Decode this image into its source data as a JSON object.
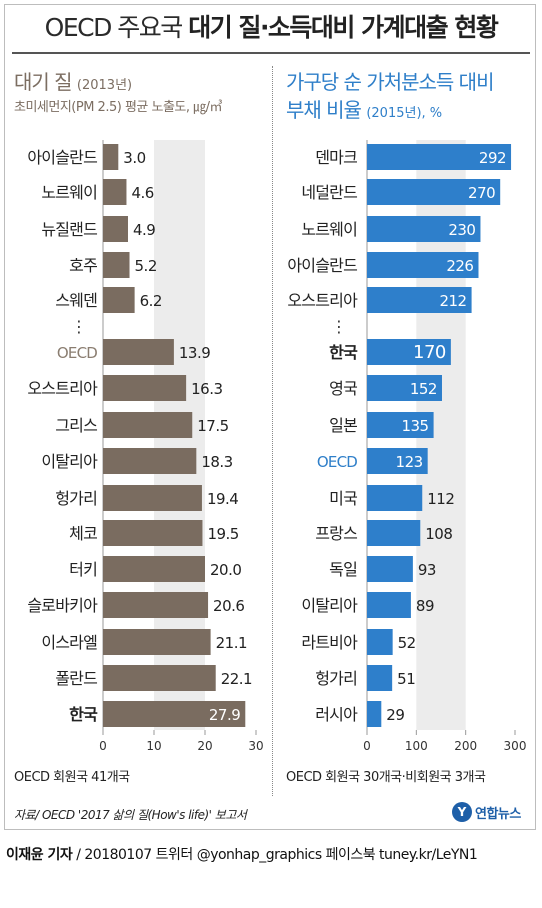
{
  "header": {
    "title_light": "OECD 주요국",
    "title_bold": "대기 질·소득대비 가계대출 현황"
  },
  "colors": {
    "left_bar": "#7a6c60",
    "right_bar": "#2e7fcb",
    "left_header": "#7c6e62",
    "right_header": "#2f7fc9",
    "oecd_label_left": "#8a7d70",
    "oecd_label_right": "#2f7fc9"
  },
  "left_panel": {
    "title": "대기 질",
    "title_year": "(2013년)",
    "subtitle": "초미세먼지(PM 2.5) 평균 노출도, ㎍/㎥",
    "footer": "OECD 회원국 41개국"
  },
  "right_panel": {
    "title_line1": "가구당 순 가처분소득 대비",
    "title_line2": "부채 비율",
    "title_note": "(2015년), %",
    "footer": "OECD 회원국 30개국·비회원국 3개국"
  },
  "ellipsis": "⋮",
  "chart_data": [
    {
      "type": "bar",
      "orientation": "horizontal",
      "title": "대기 질 (2013년)",
      "subtitle": "초미세먼지(PM 2.5) 평균 노출도, ㎍/㎥",
      "categories": [
        "아이슬란드",
        "노르웨이",
        "뉴질랜드",
        "호주",
        "스웨덴",
        "OECD",
        "오스트리아",
        "그리스",
        "이탈리아",
        "헝가리",
        "체코",
        "터키",
        "슬로바키아",
        "이스라엘",
        "폴란드",
        "한국"
      ],
      "values": [
        3.0,
        4.6,
        4.9,
        5.2,
        6.2,
        13.9,
        16.3,
        17.5,
        18.3,
        19.4,
        19.5,
        20.0,
        20.6,
        21.1,
        22.1,
        27.9
      ],
      "value_labels": [
        "3.0",
        "4.6",
        "4.9",
        "5.2",
        "6.2",
        "13.9",
        "16.3",
        "17.5",
        "18.3",
        "19.4",
        "19.5",
        "20.0",
        "20.6",
        "21.1",
        "22.1",
        "27.9"
      ],
      "gap_after_index": 4,
      "xlim": [
        0,
        30
      ],
      "xticks": [
        0,
        10,
        20,
        30
      ],
      "highlight": [
        "한국"
      ],
      "reference": [
        "OECD"
      ],
      "grid": "alternating vertical bands"
    },
    {
      "type": "bar",
      "orientation": "horizontal",
      "title": "가구당 순 가처분소득 대비 부채 비율 (2015년), %",
      "categories": [
        "덴마크",
        "네덜란드",
        "노르웨이",
        "아이슬란드",
        "오스트리아",
        "한국",
        "영국",
        "일본",
        "OECD",
        "미국",
        "프랑스",
        "독일",
        "이탈리아",
        "라트비아",
        "헝가리",
        "러시아"
      ],
      "values": [
        292,
        270,
        230,
        226,
        212,
        170,
        152,
        135,
        123,
        112,
        108,
        93,
        89,
        52,
        51,
        29
      ],
      "value_labels": [
        "292",
        "270",
        "230",
        "226",
        "212",
        "170",
        "152",
        "135",
        "123",
        "112",
        "108",
        "93",
        "89",
        "52",
        "51",
        "29"
      ],
      "gap_after_index": 4,
      "xlim": [
        0,
        300
      ],
      "xticks": [
        0,
        100,
        200,
        300
      ],
      "highlight": [
        "한국"
      ],
      "reference": [
        "OECD"
      ],
      "grid": "alternating vertical bands"
    }
  ],
  "source": "자료/ OECD '2017 삶의 질(How's life)' 보고서",
  "logo": {
    "mark": "Y",
    "text": "연합뉴스"
  },
  "credit": {
    "author": "이재윤 기자",
    "rest": " / 20180107   트위터 @yonhap_graphics  페이스북 tuney.kr/LeYN1"
  }
}
